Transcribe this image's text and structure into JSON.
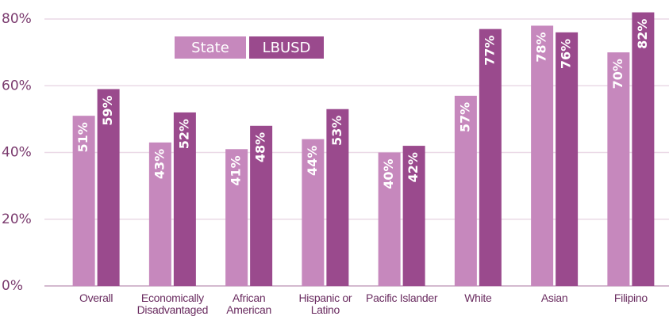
{
  "chart_data": {
    "type": "bar",
    "categories": [
      "Overall",
      "Economically Disadvantaged",
      "African American",
      "Hispanic or Latino",
      "Pacific Islander",
      "White",
      "Asian",
      "Filipino"
    ],
    "series": [
      {
        "name": "State",
        "color": "#c688bd",
        "values": [
          51,
          43,
          41,
          44,
          40,
          57,
          78,
          70
        ],
        "value_labels": [
          "51%",
          "43%",
          "41%",
          "44%",
          "40%",
          "57%",
          "78%",
          "70%"
        ]
      },
      {
        "name": "LBUSD",
        "color": "#9a4a8d",
        "values": [
          59,
          52,
          48,
          53,
          42,
          77,
          76,
          82
        ],
        "value_labels": [
          "59%",
          "52%",
          "48%",
          "53%",
          "42%",
          "77%",
          "76%",
          "82%"
        ]
      }
    ],
    "ylim": [
      0,
      80
    ],
    "yticks": [
      {
        "value": 0,
        "label": "0%"
      },
      {
        "value": 20,
        "label": "20%"
      },
      {
        "value": 40,
        "label": "40%"
      },
      {
        "value": 60,
        "label": "60%"
      },
      {
        "value": 80,
        "label": "80%"
      }
    ],
    "grid": true
  }
}
